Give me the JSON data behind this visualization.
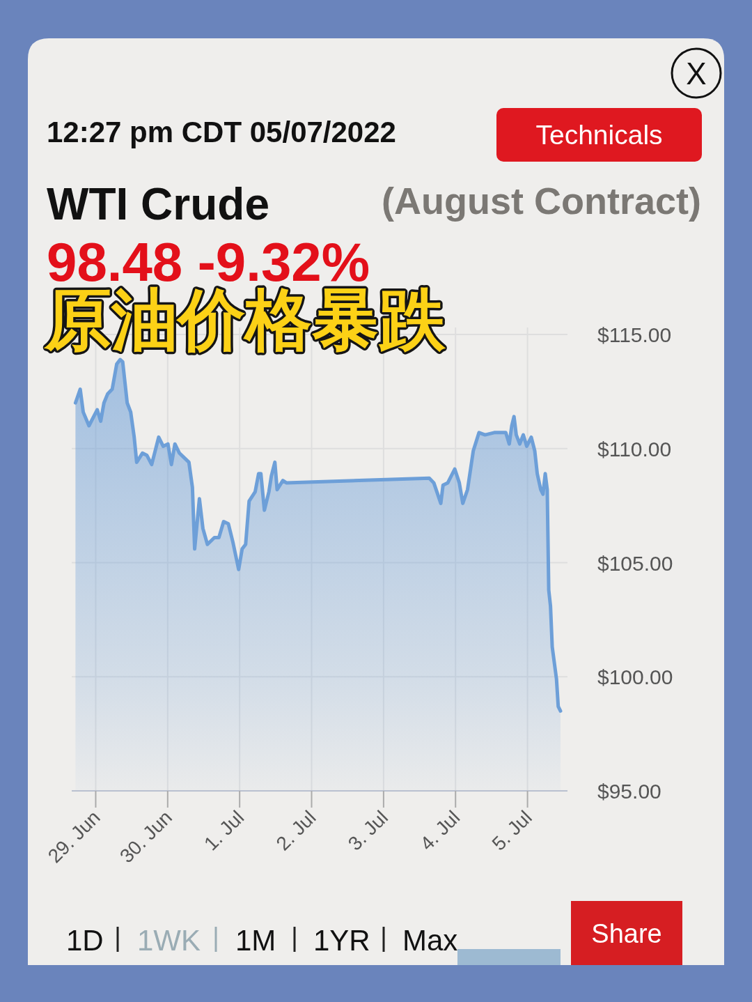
{
  "chart_data": {
    "type": "area",
    "title": "WTI Crude",
    "subtitle": "(August Contract)",
    "annotations": [
      "12:27 pm CDT 05/07/2022",
      "98.48 -9.32%",
      "原油价格暴跌",
      "Technicals",
      "1D",
      "1WK",
      "1M",
      "1YR",
      "Max",
      "Share",
      "X"
    ],
    "color": "#6d9fd8",
    "grid": true,
    "xlim": [
      "2022-06-28T16:00",
      "2022-07-05T13:20"
    ],
    "ylim": [
      95,
      115
    ],
    "xticks": [
      {
        "value": "2022-06-29",
        "label": "29. Jun"
      },
      {
        "value": "2022-06-30",
        "label": "30. Jun"
      },
      {
        "value": "2022-07-01",
        "label": "1. Jul"
      },
      {
        "value": "2022-07-02",
        "label": "2. Jul"
      },
      {
        "value": "2022-07-03",
        "label": "3. Jul"
      },
      {
        "value": "2022-07-04",
        "label": "4. Jul"
      },
      {
        "value": "2022-07-05",
        "label": "5. Jul"
      }
    ],
    "yticks": [
      {
        "value": 95,
        "label": "$95.00"
      },
      {
        "value": 100,
        "label": "$100.00"
      },
      {
        "value": 105,
        "label": "$105.00"
      },
      {
        "value": 110,
        "label": "$110.00"
      },
      {
        "value": 115,
        "label": "$115.00"
      }
    ],
    "x": [
      "2022-06-28T17:15",
      "2022-06-28T18:50",
      "2022-06-28T19:50",
      "2022-06-28T21:45",
      "2022-06-29T00:30",
      "2022-06-29T01:40",
      "2022-06-29T02:45",
      "2022-06-29T04:00",
      "2022-06-29T05:30",
      "2022-06-29T07:00",
      "2022-06-29T08:10",
      "2022-06-29T09:00",
      "2022-06-29T09:45",
      "2022-06-29T10:30",
      "2022-06-29T11:40",
      "2022-06-29T12:50",
      "2022-06-29T13:40",
      "2022-06-29T15:35",
      "2022-06-29T17:05",
      "2022-06-29T18:40",
      "2022-06-29T19:50",
      "2022-06-29T21:00",
      "2022-06-29T22:30",
      "2022-06-30T00:05",
      "2022-06-30T01:15",
      "2022-06-30T02:25",
      "2022-06-30T03:55",
      "2022-06-30T05:30",
      "2022-06-30T07:05",
      "2022-06-30T08:15",
      "2022-06-30T09:00",
      "2022-06-30T10:35",
      "2022-06-30T11:45",
      "2022-06-30T13:15",
      "2022-06-30T15:35",
      "2022-06-30T17:05",
      "2022-06-30T18:40",
      "2022-06-30T20:15",
      "2022-06-30T21:45",
      "2022-06-30T23:40",
      "2022-07-01T00:50",
      "2022-07-01T02:00",
      "2022-07-01T03:10",
      "2022-07-01T05:10",
      "2022-07-01T06:20",
      "2022-07-01T07:05",
      "2022-07-01T08:15",
      "2022-07-01T09:45",
      "2022-07-01T10:35",
      "2022-07-01T11:45",
      "2022-07-01T12:30",
      "2022-07-01T14:25",
      "2022-07-01T15:35",
      "2022-07-03T15:15",
      "2022-07-03T16:45",
      "2022-07-03T19:05",
      "2022-07-03T19:50",
      "2022-07-03T21:25",
      "2022-07-03T23:45",
      "2022-07-04T01:15",
      "2022-07-04T02:25",
      "2022-07-04T04:00",
      "2022-07-04T05:55",
      "2022-07-04T07:50",
      "2022-07-04T09:50",
      "2022-07-04T12:55",
      "2022-07-04T16:45",
      "2022-07-04T17:55",
      "2022-07-04T18:45",
      "2022-07-04T19:30",
      "2022-07-04T20:15",
      "2022-07-04T21:25",
      "2022-07-04T22:35",
      "2022-07-04T23:45",
      "2022-07-05T01:15",
      "2022-07-05T02:25",
      "2022-07-05T03:15",
      "2022-07-05T04:25",
      "2022-07-05T05:10",
      "2022-07-05T05:55",
      "2022-07-05T06:35",
      "2022-07-05T07:05",
      "2022-07-05T07:40",
      "2022-07-05T08:15",
      "2022-07-05T09:40",
      "2022-07-05T10:15",
      "2022-07-05T11:00"
    ],
    "values": [
      112.0,
      112.6,
      111.6,
      111.0,
      111.7,
      111.2,
      112.0,
      112.4,
      112.6,
      113.7,
      113.9,
      113.8,
      112.9,
      112.0,
      111.6,
      110.5,
      109.4,
      109.8,
      109.7,
      109.3,
      109.9,
      110.5,
      110.1,
      110.2,
      109.3,
      110.2,
      109.8,
      109.6,
      109.4,
      108.3,
      105.6,
      107.8,
      106.5,
      105.8,
      106.1,
      106.1,
      106.8,
      106.7,
      105.9,
      104.7,
      105.6,
      105.8,
      107.7,
      108.1,
      108.9,
      108.9,
      107.3,
      108.1,
      108.8,
      109.4,
      108.2,
      108.6,
      108.5,
      108.7,
      108.5,
      107.6,
      108.4,
      108.5,
      109.1,
      108.5,
      107.6,
      108.2,
      109.9,
      110.7,
      110.6,
      110.7,
      110.7,
      110.2,
      111.0,
      111.4,
      110.6,
      110.2,
      110.6,
      110.1,
      110.5,
      109.9,
      108.9,
      108.2,
      108.0,
      108.9,
      108.2,
      103.8,
      103.1,
      101.3,
      99.9,
      98.7,
      98.5
    ]
  }
}
